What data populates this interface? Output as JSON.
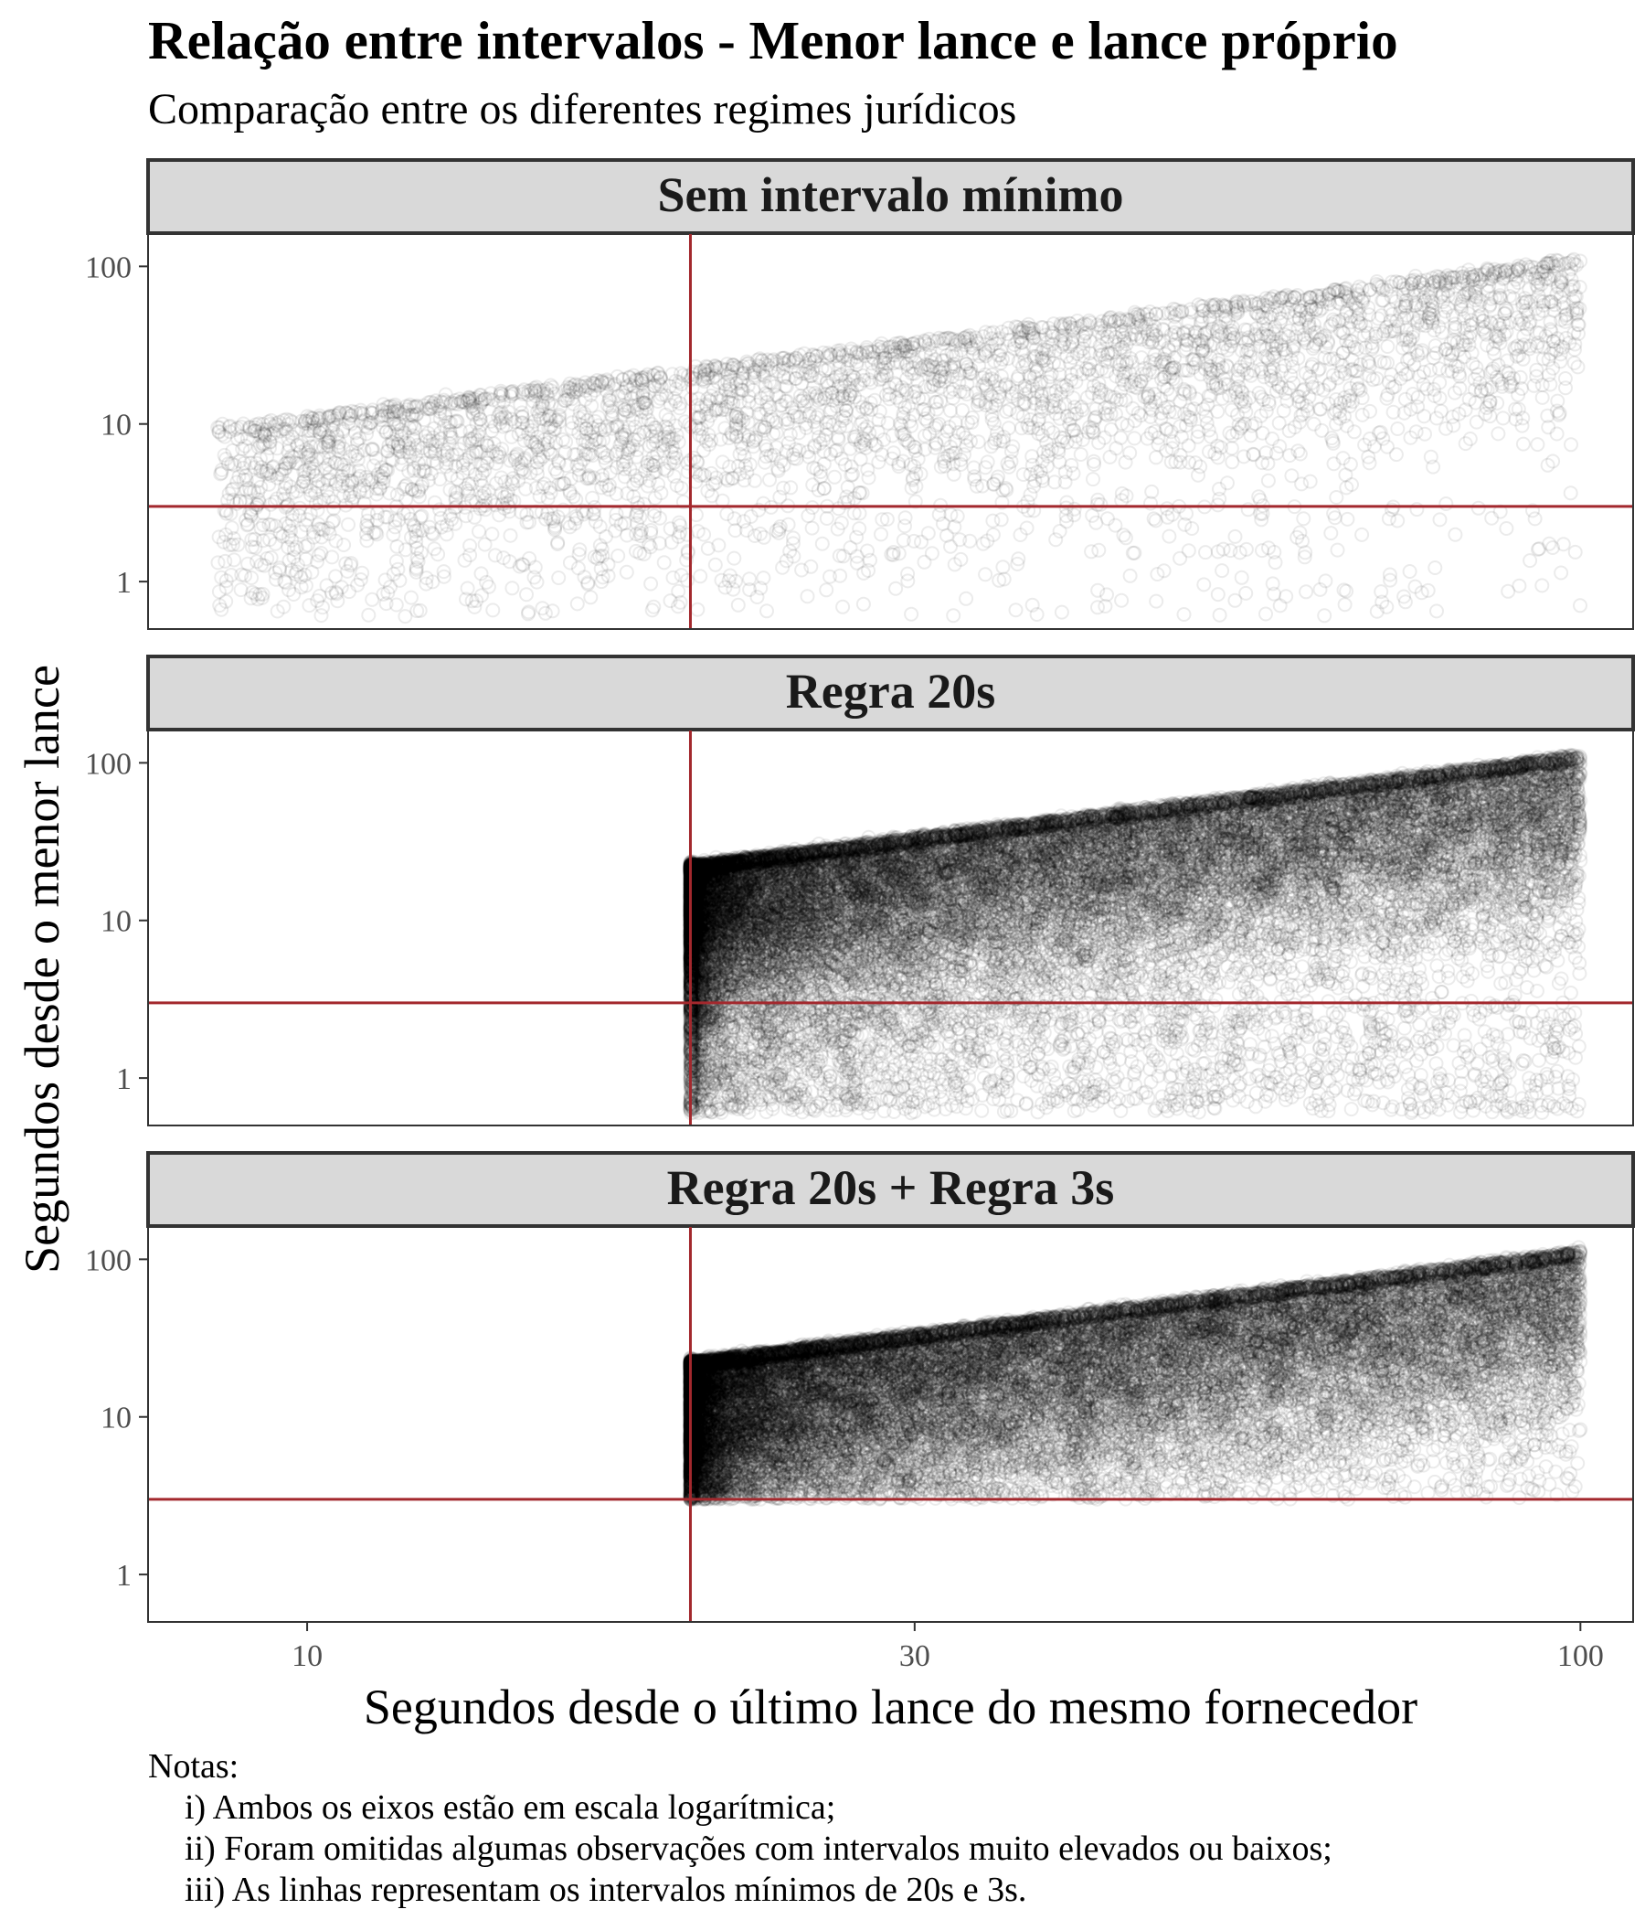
{
  "chart_data": {
    "type": "scatter",
    "title": "Relação entre intervalos - Menor lance e lance próprio",
    "subtitle": "Comparação entre os diferentes regimes jurídicos",
    "xlabel": "Segundos desde o último lance do mesmo fornecedor",
    "ylabel": "Segundos desde o menor lance",
    "x_scale": "log",
    "y_scale": "log",
    "xlim": [
      7.5,
      110
    ],
    "ylim": [
      0.5,
      150
    ],
    "x_ticks": [
      10,
      30,
      100
    ],
    "x_tick_labels": [
      "10",
      "30",
      "100"
    ],
    "y_ticks": [
      1,
      10,
      100
    ],
    "y_tick_labels": [
      "1",
      "10",
      "100"
    ],
    "reference_lines": {
      "x": 20,
      "y": 3,
      "color": "#a3282d"
    },
    "point_style": {
      "shape": "hollow-circle",
      "color": "#000000",
      "alpha": 0.08
    },
    "grid": false,
    "legend": "none",
    "panels": [
      {
        "label": "Sem intervalo mínimo",
        "n_points": 4200,
        "x_range": [
          8.5,
          100
        ],
        "min_lance_x": 8.5,
        "density": "uniform in log x"
      },
      {
        "label": "Regra 20s",
        "n_points": 26000,
        "x_range": [
          20,
          100
        ],
        "min_lance_x": 20,
        "density": "concentrated near x = 20"
      },
      {
        "label": "Regra 20s + Regra 3s",
        "n_points": 26000,
        "x_range": [
          20,
          100
        ],
        "min_lance_x": 20,
        "min_y": 3,
        "density": "concentrated near x = 20"
      }
    ],
    "notes": {
      "header": "Notas:",
      "items": [
        "i) Ambos os eixos estão em escala logarítmica;",
        "ii) Foram omitidas algumas observações com intervalos muito elevados ou baixos;",
        "iii) As linhas representam os intervalos mínimos de 20s e 3s."
      ]
    }
  }
}
